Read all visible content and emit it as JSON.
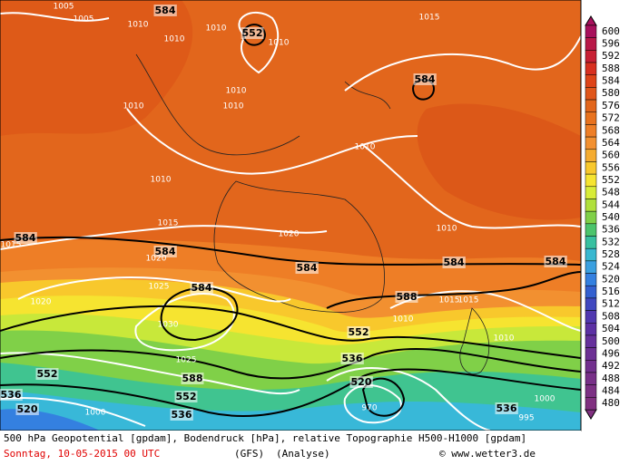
{
  "map": {
    "geopotential_labels": [
      584,
      552,
      584,
      584,
      584,
      584,
      588,
      584,
      584,
      552,
      552,
      536,
      520,
      536,
      552,
      536,
      536,
      520,
      584,
      588
    ],
    "isobar_labels": [
      1005,
      1005,
      1010,
      1010,
      1010,
      1010,
      1015,
      1010,
      1010,
      1010,
      1010,
      1010,
      1010,
      1015,
      1015,
      1020,
      1025,
      1020,
      1030,
      1025,
      1010,
      1010,
      1015,
      995,
      1000,
      1000,
      970,
      1015,
      1020
    ]
  },
  "colorbar": {
    "levels": [
      600,
      596,
      592,
      588,
      584,
      580,
      576,
      572,
      568,
      564,
      560,
      556,
      552,
      548,
      544,
      540,
      536,
      532,
      528,
      524,
      520,
      516,
      512,
      508,
      504,
      500,
      496,
      492,
      488,
      484,
      480
    ],
    "colors": [
      "#a8105c",
      "#b81848",
      "#c82034",
      "#d83020",
      "#de4418",
      "#e0561a",
      "#e2661c",
      "#e8721e",
      "#ee7e26",
      "#f29030",
      "#f5ac30",
      "#f8c82c",
      "#f6e430",
      "#d8ec38",
      "#b0e03c",
      "#80d048",
      "#4cc46c",
      "#38c0a0",
      "#38b8d0",
      "#3aa0e0",
      "#3480e0",
      "#3460d0",
      "#4048c0",
      "#5038b0",
      "#5c30a4",
      "#66309c",
      "#6c3094",
      "#72308e",
      "#783088",
      "#7c3084",
      "#803080"
    ]
  },
  "caption": {
    "description": "500 hPa Geopotential [gpdam], Bodendruck [hPa], relative Topographie H500-H1000 [gpdam]",
    "date": "Sonntag, 10-05-2015  00 UTC",
    "model": "(GFS)",
    "run": "(Analyse)",
    "credit": "© www.wetter3.de"
  }
}
